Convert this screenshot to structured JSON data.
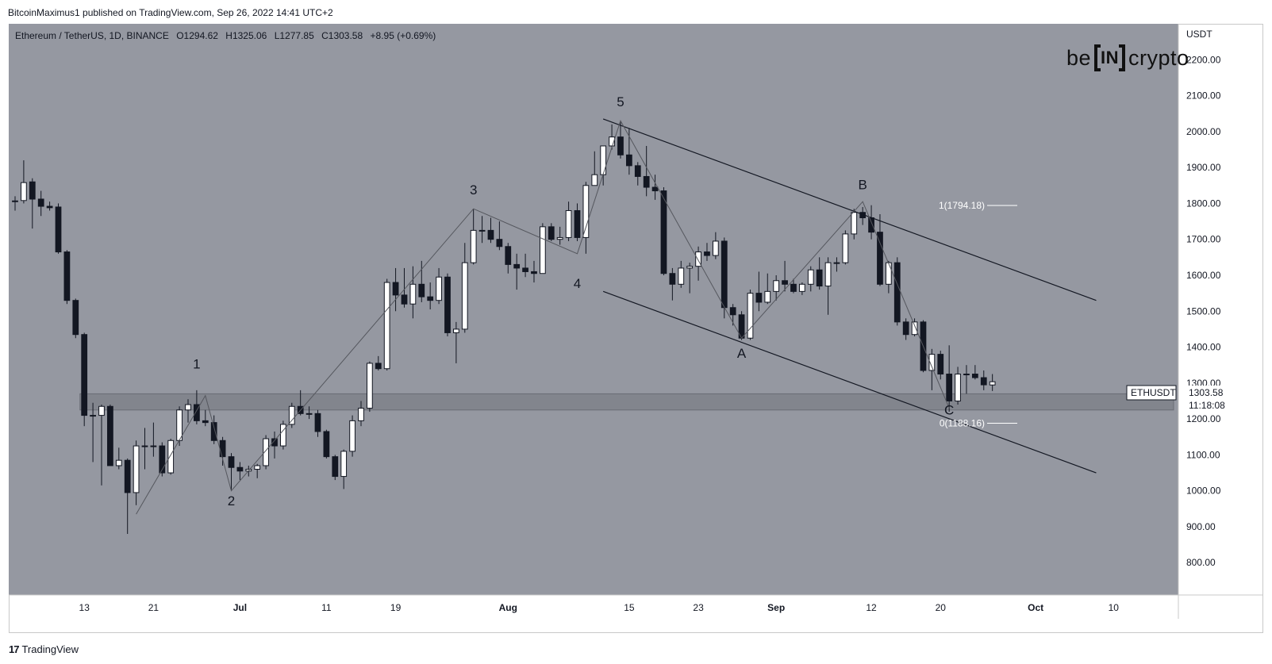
{
  "header": {
    "published": "BitcoinMaximus1 published on TradingView.com, Sep 26, 2022 14:41 UTC+2"
  },
  "brand": {
    "prefix": "be",
    "box": "IN",
    "suffix": "crypto"
  },
  "footer": {
    "logo": "17",
    "label": "TradingView"
  },
  "legend": {
    "symbol": "Ethereum / TetherUS, 1D, BINANCE",
    "o_label": "O",
    "o": "1294.62",
    "h_label": "H",
    "h": "1325.06",
    "l_label": "L",
    "l": "1277.85",
    "c_label": "C",
    "c": "1303.58",
    "change": "+8.95 (+0.69%)"
  },
  "price_tag": {
    "symbol": "ETHUSDT",
    "price": "1303.58",
    "countdown": "11:18:08"
  },
  "colors": {
    "plot_bg": "#9598a1",
    "axis_bg": "#ffffff",
    "bull": "#ffffff",
    "bear": "#131722",
    "zone": "#7c7f87",
    "line": "#131722"
  },
  "chart_data": {
    "type": "candlestick",
    "currency_label": "USDT",
    "y_ticks": [
      800,
      900,
      1000,
      1100,
      1200,
      1300,
      1400,
      1500,
      1600,
      1700,
      1800,
      1900,
      2000,
      2100,
      2200
    ],
    "y_tick_labels": [
      "800.00",
      "900.00",
      "1000.00",
      "1100.00",
      "1200.00",
      "1300.00",
      "1400.00",
      "1500.00",
      "1600.00",
      "1700.00",
      "1800.00",
      "1900.00",
      "2000.00",
      "2100.00",
      "2200.00"
    ],
    "ylim": [
      710,
      2300
    ],
    "x_range": [
      "2022-06-05",
      "2022-10-17"
    ],
    "x_ticks": [
      {
        "label": "13",
        "date": "2022-06-13",
        "bold": false
      },
      {
        "label": "21",
        "date": "2022-06-21",
        "bold": false
      },
      {
        "label": "Jul",
        "date": "2022-07-01",
        "bold": true
      },
      {
        "label": "11",
        "date": "2022-07-11",
        "bold": false
      },
      {
        "label": "19",
        "date": "2022-07-19",
        "bold": false
      },
      {
        "label": "Aug",
        "date": "2022-08-01",
        "bold": true
      },
      {
        "label": "15",
        "date": "2022-08-15",
        "bold": false
      },
      {
        "label": "23",
        "date": "2022-08-23",
        "bold": false
      },
      {
        "label": "Sep",
        "date": "2022-09-01",
        "bold": true
      },
      {
        "label": "12",
        "date": "2022-09-12",
        "bold": false
      },
      {
        "label": "20",
        "date": "2022-09-20",
        "bold": false
      },
      {
        "label": "Oct",
        "date": "2022-10-01",
        "bold": true
      },
      {
        "label": "10",
        "date": "2022-10-10",
        "bold": false
      }
    ],
    "candles": [
      {
        "d": "2022-06-05",
        "o": 1805,
        "h": 1820,
        "l": 1780,
        "c": 1807
      },
      {
        "d": "2022-06-06",
        "o": 1808,
        "h": 1920,
        "l": 1800,
        "c": 1858
      },
      {
        "d": "2022-06-07",
        "o": 1860,
        "h": 1870,
        "l": 1730,
        "c": 1812
      },
      {
        "d": "2022-06-08",
        "o": 1812,
        "h": 1835,
        "l": 1765,
        "c": 1792
      },
      {
        "d": "2022-06-09",
        "o": 1792,
        "h": 1805,
        "l": 1780,
        "c": 1788
      },
      {
        "d": "2022-06-10",
        "o": 1790,
        "h": 1800,
        "l": 1660,
        "c": 1665
      },
      {
        "d": "2022-06-11",
        "o": 1665,
        "h": 1670,
        "l": 1520,
        "c": 1530
      },
      {
        "d": "2022-06-12",
        "o": 1530,
        "h": 1535,
        "l": 1425,
        "c": 1435
      },
      {
        "d": "2022-06-13",
        "o": 1435,
        "h": 1440,
        "l": 1180,
        "c": 1210
      },
      {
        "d": "2022-06-14",
        "o": 1210,
        "h": 1245,
        "l": 1080,
        "c": 1210
      },
      {
        "d": "2022-06-15",
        "o": 1210,
        "h": 1240,
        "l": 1015,
        "c": 1235
      },
      {
        "d": "2022-06-16",
        "o": 1235,
        "h": 1240,
        "l": 1070,
        "c": 1070
      },
      {
        "d": "2022-06-17",
        "o": 1070,
        "h": 1120,
        "l": 1060,
        "c": 1085
      },
      {
        "d": "2022-06-18",
        "o": 1085,
        "h": 1090,
        "l": 880,
        "c": 995
      },
      {
        "d": "2022-06-19",
        "o": 995,
        "h": 1140,
        "l": 960,
        "c": 1125
      },
      {
        "d": "2022-06-20",
        "o": 1125,
        "h": 1175,
        "l": 1060,
        "c": 1125
      },
      {
        "d": "2022-06-21",
        "o": 1125,
        "h": 1190,
        "l": 1095,
        "c": 1125
      },
      {
        "d": "2022-06-22",
        "o": 1125,
        "h": 1135,
        "l": 1040,
        "c": 1050
      },
      {
        "d": "2022-06-23",
        "o": 1050,
        "h": 1145,
        "l": 1045,
        "c": 1140
      },
      {
        "d": "2022-06-24",
        "o": 1140,
        "h": 1235,
        "l": 1125,
        "c": 1225
      },
      {
        "d": "2022-06-25",
        "o": 1225,
        "h": 1255,
        "l": 1190,
        "c": 1240
      },
      {
        "d": "2022-06-26",
        "o": 1240,
        "h": 1280,
        "l": 1185,
        "c": 1195
      },
      {
        "d": "2022-06-27",
        "o": 1195,
        "h": 1225,
        "l": 1180,
        "c": 1190
      },
      {
        "d": "2022-06-28",
        "o": 1190,
        "h": 1210,
        "l": 1130,
        "c": 1140
      },
      {
        "d": "2022-06-29",
        "o": 1140,
        "h": 1150,
        "l": 1070,
        "c": 1095
      },
      {
        "d": "2022-06-30",
        "o": 1095,
        "h": 1105,
        "l": 1000,
        "c": 1065
      },
      {
        "d": "2022-07-01",
        "o": 1065,
        "h": 1080,
        "l": 1030,
        "c": 1055
      },
      {
        "d": "2022-07-02",
        "o": 1055,
        "h": 1070,
        "l": 1040,
        "c": 1060
      },
      {
        "d": "2022-07-03",
        "o": 1060,
        "h": 1075,
        "l": 1035,
        "c": 1070
      },
      {
        "d": "2022-07-04",
        "o": 1070,
        "h": 1155,
        "l": 1060,
        "c": 1145
      },
      {
        "d": "2022-07-05",
        "o": 1145,
        "h": 1165,
        "l": 1090,
        "c": 1125
      },
      {
        "d": "2022-07-06",
        "o": 1125,
        "h": 1195,
        "l": 1115,
        "c": 1185
      },
      {
        "d": "2022-07-07",
        "o": 1185,
        "h": 1245,
        "l": 1175,
        "c": 1235
      },
      {
        "d": "2022-07-08",
        "o": 1235,
        "h": 1280,
        "l": 1210,
        "c": 1215
      },
      {
        "d": "2022-07-09",
        "o": 1215,
        "h": 1235,
        "l": 1200,
        "c": 1215
      },
      {
        "d": "2022-07-10",
        "o": 1215,
        "h": 1225,
        "l": 1150,
        "c": 1165
      },
      {
        "d": "2022-07-11",
        "o": 1165,
        "h": 1170,
        "l": 1090,
        "c": 1095
      },
      {
        "d": "2022-07-12",
        "o": 1095,
        "h": 1100,
        "l": 1030,
        "c": 1040
      },
      {
        "d": "2022-07-13",
        "o": 1040,
        "h": 1115,
        "l": 1005,
        "c": 1110
      },
      {
        "d": "2022-07-14",
        "o": 1110,
        "h": 1210,
        "l": 1095,
        "c": 1195
      },
      {
        "d": "2022-07-15",
        "o": 1195,
        "h": 1250,
        "l": 1180,
        "c": 1230
      },
      {
        "d": "2022-07-16",
        "o": 1230,
        "h": 1360,
        "l": 1220,
        "c": 1355
      },
      {
        "d": "2022-07-17",
        "o": 1355,
        "h": 1375,
        "l": 1335,
        "c": 1340
      },
      {
        "d": "2022-07-18",
        "o": 1340,
        "h": 1590,
        "l": 1335,
        "c": 1580
      },
      {
        "d": "2022-07-19",
        "o": 1580,
        "h": 1620,
        "l": 1500,
        "c": 1545
      },
      {
        "d": "2022-07-20",
        "o": 1545,
        "h": 1620,
        "l": 1510,
        "c": 1520
      },
      {
        "d": "2022-07-21",
        "o": 1520,
        "h": 1625,
        "l": 1480,
        "c": 1575
      },
      {
        "d": "2022-07-22",
        "o": 1575,
        "h": 1640,
        "l": 1525,
        "c": 1540
      },
      {
        "d": "2022-07-23",
        "o": 1540,
        "h": 1580,
        "l": 1505,
        "c": 1530
      },
      {
        "d": "2022-07-24",
        "o": 1530,
        "h": 1620,
        "l": 1520,
        "c": 1595
      },
      {
        "d": "2022-07-25",
        "o": 1595,
        "h": 1605,
        "l": 1430,
        "c": 1440
      },
      {
        "d": "2022-07-26",
        "o": 1440,
        "h": 1470,
        "l": 1355,
        "c": 1450
      },
      {
        "d": "2022-07-27",
        "o": 1450,
        "h": 1690,
        "l": 1440,
        "c": 1635
      },
      {
        "d": "2022-07-28",
        "o": 1635,
        "h": 1785,
        "l": 1630,
        "c": 1725
      },
      {
        "d": "2022-07-29",
        "o": 1725,
        "h": 1765,
        "l": 1690,
        "c": 1725
      },
      {
        "d": "2022-07-30",
        "o": 1725,
        "h": 1760,
        "l": 1690,
        "c": 1700
      },
      {
        "d": "2022-07-31",
        "o": 1700,
        "h": 1750,
        "l": 1670,
        "c": 1680
      },
      {
        "d": "2022-08-01",
        "o": 1680,
        "h": 1690,
        "l": 1605,
        "c": 1630
      },
      {
        "d": "2022-08-02",
        "o": 1630,
        "h": 1660,
        "l": 1560,
        "c": 1620
      },
      {
        "d": "2022-08-03",
        "o": 1620,
        "h": 1660,
        "l": 1595,
        "c": 1610
      },
      {
        "d": "2022-08-04",
        "o": 1610,
        "h": 1640,
        "l": 1580,
        "c": 1605
      },
      {
        "d": "2022-08-05",
        "o": 1605,
        "h": 1745,
        "l": 1605,
        "c": 1735
      },
      {
        "d": "2022-08-06",
        "o": 1735,
        "h": 1745,
        "l": 1695,
        "c": 1700
      },
      {
        "d": "2022-08-07",
        "o": 1700,
        "h": 1735,
        "l": 1685,
        "c": 1705
      },
      {
        "d": "2022-08-08",
        "o": 1705,
        "h": 1805,
        "l": 1695,
        "c": 1780
      },
      {
        "d": "2022-08-09",
        "o": 1780,
        "h": 1800,
        "l": 1695,
        "c": 1705
      },
      {
        "d": "2022-08-10",
        "o": 1705,
        "h": 1860,
        "l": 1660,
        "c": 1850
      },
      {
        "d": "2022-08-11",
        "o": 1850,
        "h": 1945,
        "l": 1850,
        "c": 1880
      },
      {
        "d": "2022-08-12",
        "o": 1880,
        "h": 1960,
        "l": 1850,
        "c": 1960
      },
      {
        "d": "2022-08-13",
        "o": 1960,
        "h": 2020,
        "l": 1950,
        "c": 1985
      },
      {
        "d": "2022-08-14",
        "o": 1985,
        "h": 2030,
        "l": 1925,
        "c": 1935
      },
      {
        "d": "2022-08-15",
        "o": 1935,
        "h": 2010,
        "l": 1880,
        "c": 1905
      },
      {
        "d": "2022-08-16",
        "o": 1905,
        "h": 1915,
        "l": 1850,
        "c": 1875
      },
      {
        "d": "2022-08-17",
        "o": 1875,
        "h": 1960,
        "l": 1820,
        "c": 1845
      },
      {
        "d": "2022-08-18",
        "o": 1845,
        "h": 1880,
        "l": 1810,
        "c": 1835
      },
      {
        "d": "2022-08-19",
        "o": 1835,
        "h": 1845,
        "l": 1600,
        "c": 1605
      },
      {
        "d": "2022-08-20",
        "o": 1605,
        "h": 1620,
        "l": 1530,
        "c": 1575
      },
      {
        "d": "2022-08-21",
        "o": 1575,
        "h": 1640,
        "l": 1565,
        "c": 1620
      },
      {
        "d": "2022-08-22",
        "o": 1620,
        "h": 1635,
        "l": 1550,
        "c": 1625
      },
      {
        "d": "2022-08-23",
        "o": 1625,
        "h": 1680,
        "l": 1585,
        "c": 1665
      },
      {
        "d": "2022-08-24",
        "o": 1665,
        "h": 1690,
        "l": 1640,
        "c": 1655
      },
      {
        "d": "2022-08-25",
        "o": 1655,
        "h": 1720,
        "l": 1645,
        "c": 1695
      },
      {
        "d": "2022-08-26",
        "o": 1695,
        "h": 1705,
        "l": 1480,
        "c": 1510
      },
      {
        "d": "2022-08-27",
        "o": 1510,
        "h": 1520,
        "l": 1460,
        "c": 1490
      },
      {
        "d": "2022-08-28",
        "o": 1490,
        "h": 1500,
        "l": 1420,
        "c": 1425
      },
      {
        "d": "2022-08-29",
        "o": 1425,
        "h": 1560,
        "l": 1420,
        "c": 1550
      },
      {
        "d": "2022-08-30",
        "o": 1550,
        "h": 1610,
        "l": 1500,
        "c": 1525
      },
      {
        "d": "2022-08-31",
        "o": 1525,
        "h": 1605,
        "l": 1520,
        "c": 1555
      },
      {
        "d": "2022-09-01",
        "o": 1555,
        "h": 1600,
        "l": 1530,
        "c": 1585
      },
      {
        "d": "2022-09-02",
        "o": 1585,
        "h": 1640,
        "l": 1555,
        "c": 1575
      },
      {
        "d": "2022-09-03",
        "o": 1575,
        "h": 1590,
        "l": 1550,
        "c": 1555
      },
      {
        "d": "2022-09-04",
        "o": 1555,
        "h": 1580,
        "l": 1545,
        "c": 1575
      },
      {
        "d": "2022-09-05",
        "o": 1575,
        "h": 1625,
        "l": 1555,
        "c": 1615
      },
      {
        "d": "2022-09-06",
        "o": 1615,
        "h": 1650,
        "l": 1560,
        "c": 1570
      },
      {
        "d": "2022-09-07",
        "o": 1570,
        "h": 1650,
        "l": 1490,
        "c": 1635
      },
      {
        "d": "2022-09-08",
        "o": 1635,
        "h": 1650,
        "l": 1610,
        "c": 1635
      },
      {
        "d": "2022-09-09",
        "o": 1635,
        "h": 1725,
        "l": 1630,
        "c": 1715
      },
      {
        "d": "2022-09-10",
        "o": 1715,
        "h": 1785,
        "l": 1700,
        "c": 1775
      },
      {
        "d": "2022-09-11",
        "o": 1775,
        "h": 1790,
        "l": 1740,
        "c": 1760
      },
      {
        "d": "2022-09-12",
        "o": 1760,
        "h": 1795,
        "l": 1700,
        "c": 1720
      },
      {
        "d": "2022-09-13",
        "o": 1720,
        "h": 1770,
        "l": 1570,
        "c": 1575
      },
      {
        "d": "2022-09-14",
        "o": 1575,
        "h": 1640,
        "l": 1550,
        "c": 1635
      },
      {
        "d": "2022-09-15",
        "o": 1635,
        "h": 1650,
        "l": 1460,
        "c": 1470
      },
      {
        "d": "2022-09-16",
        "o": 1470,
        "h": 1480,
        "l": 1420,
        "c": 1435
      },
      {
        "d": "2022-09-17",
        "o": 1435,
        "h": 1480,
        "l": 1430,
        "c": 1470
      },
      {
        "d": "2022-09-18",
        "o": 1470,
        "h": 1475,
        "l": 1330,
        "c": 1335
      },
      {
        "d": "2022-09-19",
        "o": 1335,
        "h": 1395,
        "l": 1280,
        "c": 1380
      },
      {
        "d": "2022-09-20",
        "o": 1380,
        "h": 1390,
        "l": 1310,
        "c": 1325
      },
      {
        "d": "2022-09-21",
        "o": 1325,
        "h": 1405,
        "l": 1220,
        "c": 1250
      },
      {
        "d": "2022-09-22",
        "o": 1250,
        "h": 1345,
        "l": 1240,
        "c": 1325
      },
      {
        "d": "2022-09-23",
        "o": 1325,
        "h": 1350,
        "l": 1270,
        "c": 1325
      },
      {
        "d": "2022-09-24",
        "o": 1325,
        "h": 1350,
        "l": 1310,
        "c": 1315
      },
      {
        "d": "2022-09-25",
        "o": 1315,
        "h": 1335,
        "l": 1280,
        "c": 1295
      },
      {
        "d": "2022-09-26",
        "o": 1294.62,
        "h": 1325.06,
        "l": 1277.85,
        "c": 1303.58
      }
    ],
    "support_zone": {
      "from_date": "2022-06-13",
      "to_date": "2022-10-17",
      "low": 1225,
      "high": 1270
    },
    "channel_lines": [
      {
        "name": "upper",
        "p1": {
          "d": "2022-08-12",
          "v": 2035
        },
        "p2": {
          "d": "2022-10-08",
          "v": 1530
        }
      },
      {
        "name": "lower",
        "p1": {
          "d": "2022-08-12",
          "v": 1555
        },
        "p2": {
          "d": "2022-10-08",
          "v": 1050
        }
      }
    ],
    "wave_path": [
      {
        "d": "2022-06-19",
        "v": 935
      },
      {
        "d": "2022-06-27",
        "v": 1265
      },
      {
        "d": "2022-06-30",
        "v": 1000
      },
      {
        "d": "2022-07-28",
        "v": 1785
      },
      {
        "d": "2022-08-09",
        "v": 1660
      },
      {
        "d": "2022-08-14",
        "v": 2030
      },
      {
        "d": "2022-08-28",
        "v": 1425
      },
      {
        "d": "2022-09-11",
        "v": 1805
      },
      {
        "d": "2022-09-21",
        "v": 1230
      }
    ],
    "wave_labels": [
      {
        "label": "1",
        "d": "2022-06-26",
        "v": 1340
      },
      {
        "label": "2",
        "d": "2022-06-30",
        "v": 960
      },
      {
        "label": "3",
        "d": "2022-07-28",
        "v": 1825
      },
      {
        "label": "4",
        "d": "2022-08-09",
        "v": 1565
      },
      {
        "label": "5",
        "d": "2022-08-14",
        "v": 2070
      },
      {
        "label": "A",
        "d": "2022-08-28",
        "v": 1370
      },
      {
        "label": "B",
        "d": "2022-09-11",
        "v": 1840
      },
      {
        "label": "C",
        "d": "2022-09-21",
        "v": 1212
      }
    ],
    "fib_levels": [
      {
        "label": "1(1794.18)",
        "value": 1794.18
      },
      {
        "label": "0(1188.16)",
        "value": 1188.16
      }
    ]
  }
}
